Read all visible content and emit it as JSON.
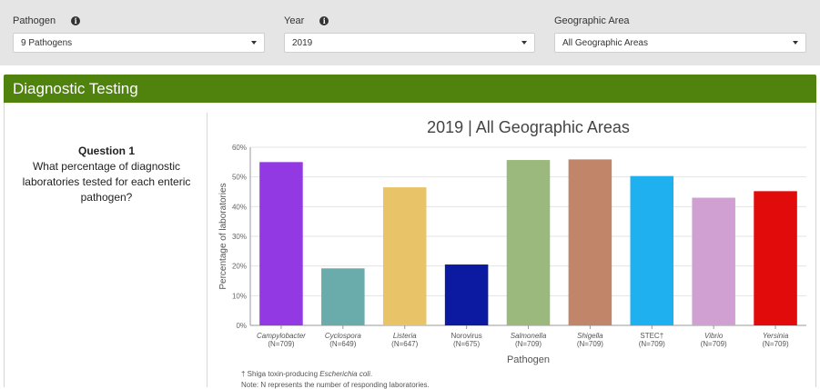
{
  "filters": {
    "pathogen": {
      "label": "Pathogen",
      "value": "9 Pathogens"
    },
    "year": {
      "label": "Year",
      "value": "2019"
    },
    "area": {
      "label": "Geographic Area",
      "value": "All Geographic Areas"
    }
  },
  "section": {
    "title": "Diagnostic Testing"
  },
  "question": {
    "title": "Question 1",
    "text": "What percentage of diagnostic laboratories tested for each enteric pathogen?"
  },
  "chart_data": {
    "type": "bar",
    "title": "2019 | All Geographic Areas",
    "xlabel": "Pathogen",
    "ylabel": "Percentage of laboratories",
    "ylim": [
      0,
      60
    ],
    "yticks": [
      "0%",
      "10%",
      "20%",
      "30%",
      "40%",
      "50%",
      "60%"
    ],
    "categories": [
      "Campylobacter",
      "Cyclospora",
      "Listeria",
      "Norovirus",
      "Salmonella",
      "Shigella",
      "STEC†",
      "Vibrio",
      "Yersinia"
    ],
    "italic": [
      true,
      true,
      true,
      false,
      true,
      true,
      false,
      true,
      true
    ],
    "n_labels": [
      "(N=709)",
      "(N=649)",
      "(N=647)",
      "(N=675)",
      "(N=709)",
      "(N=709)",
      "(N=709)",
      "(N=709)",
      "(N=709)"
    ],
    "values": [
      55,
      19.2,
      46.5,
      20.5,
      55.7,
      55.9,
      50.3,
      43,
      45.2
    ],
    "colors": [
      "#9339e4",
      "#6aabab",
      "#e8c368",
      "#0b1aa0",
      "#9bb97c",
      "#c1856a",
      "#1fb0f0",
      "#d0a0d2",
      "#e20b0b"
    ],
    "grid": true
  },
  "footnotes": {
    "stec_prefix": "† Shiga toxin-producing ",
    "stec_italic": "Escherichia coli",
    "stec_suffix": ".",
    "note": "Note: N represents the number of responding laboratories."
  }
}
